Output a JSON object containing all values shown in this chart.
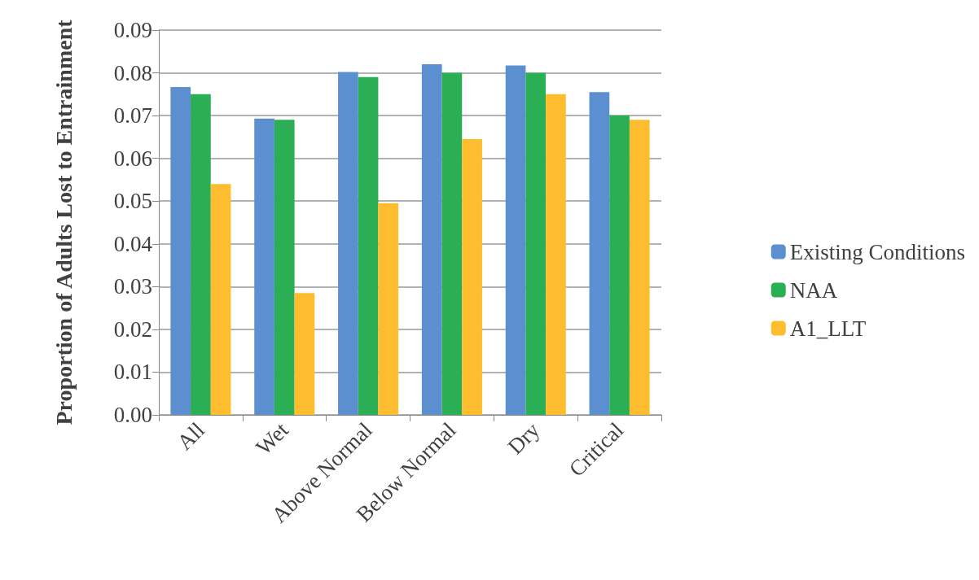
{
  "chart_data": {
    "type": "bar",
    "ylabel": "Proportion of Adults Lost to Entrainment",
    "categories": [
      "All",
      "Wet",
      "Above Normal",
      "Below Normal",
      "Dry",
      "Critical"
    ],
    "series": [
      {
        "name": "Existing Conditions",
        "color": "#5b8fcf",
        "values": [
          0.0767,
          0.0693,
          0.0802,
          0.082,
          0.0817,
          0.0755
        ]
      },
      {
        "name": "NAA",
        "color": "#2aaf54",
        "values": [
          0.075,
          0.069,
          0.079,
          0.08,
          0.08,
          0.07
        ]
      },
      {
        "name": "A1_LLT",
        "color": "#fdbd2f",
        "values": [
          0.054,
          0.0285,
          0.0495,
          0.0645,
          0.075,
          0.069
        ]
      }
    ],
    "ylim": [
      0,
      0.09
    ],
    "yticks": [
      {
        "value": 0,
        "label": "0.00"
      },
      {
        "value": 0.01,
        "label": "0.01"
      },
      {
        "value": 0.02,
        "label": "0.02"
      },
      {
        "value": 0.03,
        "label": "0.03"
      },
      {
        "value": 0.04,
        "label": "0.04"
      },
      {
        "value": 0.05,
        "label": "0.05"
      },
      {
        "value": 0.06,
        "label": "0.06"
      },
      {
        "value": 0.07,
        "label": "0.07"
      },
      {
        "value": 0.08,
        "label": "0.08"
      },
      {
        "value": 0.09,
        "label": "0.09"
      }
    ],
    "grid": "y",
    "legend": "right"
  }
}
